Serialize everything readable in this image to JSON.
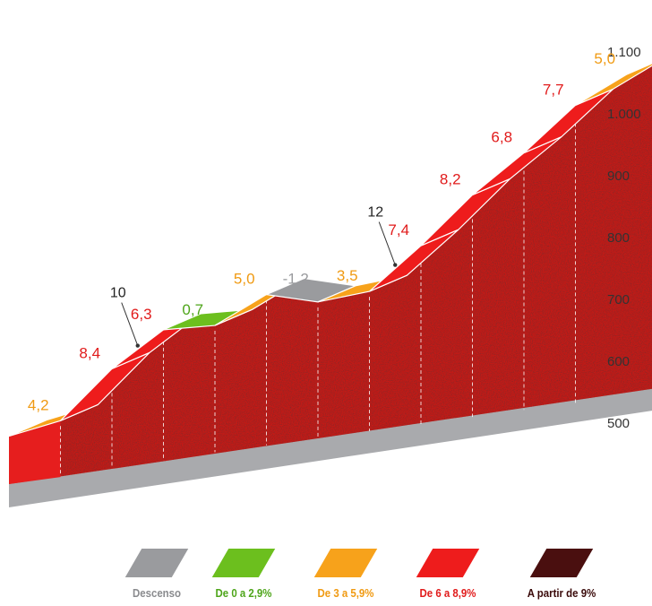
{
  "chart_data": {
    "type": "area",
    "title": "",
    "xlabel": "",
    "ylabel": "",
    "ylim": [
      500,
      1100
    ],
    "yticks": [
      "500",
      "600",
      "700",
      "800",
      "900",
      "1.000",
      "1.100"
    ],
    "ytick_values": [
      500,
      600,
      700,
      800,
      900,
      1000,
      1100
    ],
    "segments": [
      {
        "gradient": 4.2,
        "label": "4,2",
        "category": "De 3 a 5,9%",
        "start_alt": 505,
        "end_alt": 530
      },
      {
        "gradient": 8.4,
        "label": "8,4",
        "category": "De 6 a 8,9%",
        "start_alt": 530,
        "end_alt": 614
      },
      {
        "gradient": 6.3,
        "label": "6,3",
        "category": "De 6 a 8,9%",
        "start_alt": 614,
        "end_alt": 677
      },
      {
        "gradient": 0.7,
        "label": "0,7",
        "category": "De 0 a 2,9%",
        "start_alt": 677,
        "end_alt": 684
      },
      {
        "gradient": 5.0,
        "label": "5,0",
        "category": "De 3 a 5,9%",
        "start_alt": 684,
        "end_alt": 734
      },
      {
        "gradient": -1.2,
        "label": "-1,2",
        "category": "Descenso",
        "start_alt": 734,
        "end_alt": 722
      },
      {
        "gradient": 3.5,
        "label": "3,5",
        "category": "De 3 a 5,9%",
        "start_alt": 722,
        "end_alt": 739
      },
      {
        "gradient": 7.4,
        "label": "7,4",
        "category": "De 6 a 8,9%",
        "start_alt": 739,
        "end_alt": 813
      },
      {
        "gradient": 8.2,
        "label": "8,2",
        "category": "De 6 a 8,9%",
        "start_alt": 813,
        "end_alt": 895
      },
      {
        "gradient": 6.8,
        "label": "6,8",
        "category": "De 6 a 8,9%",
        "start_alt": 895,
        "end_alt": 963
      },
      {
        "gradient": 7.7,
        "label": "7,7",
        "category": "De 6 a 8,9%",
        "start_alt": 963,
        "end_alt": 1040
      },
      {
        "gradient": 5.0,
        "label": "5,0",
        "category": "De 3 a 5,9%",
        "start_alt": 1040,
        "end_alt": 1090
      }
    ],
    "max_markers": [
      {
        "label": "10",
        "segment_index": 2
      },
      {
        "label": "12",
        "segment_index": 7
      }
    ],
    "legend": [
      {
        "label": "Descenso",
        "color": "#9a9b9e",
        "text_color": "#8a8b8e"
      },
      {
        "label": "De 0 a 2,9%",
        "color": "#6cbf1e",
        "text_color": "#4ea51a"
      },
      {
        "label": "De 3 a 5,9%",
        "color": "#f7a21b",
        "text_color": "#f09a12"
      },
      {
        "label": "De 6 a 8,9%",
        "color": "#ee1c1c",
        "text_color": "#e11b1b"
      },
      {
        "label": "A partir de 9%",
        "color": "#4a0f0f",
        "text_color": "#3a0a0a"
      }
    ],
    "legend_placement": "bottom",
    "grid": false
  },
  "colors": {
    "wall": "#c41a16",
    "base_front": "#a9aaad",
    "base_top": "#d3d4d6",
    "descent_label": "#9a9b9e"
  }
}
